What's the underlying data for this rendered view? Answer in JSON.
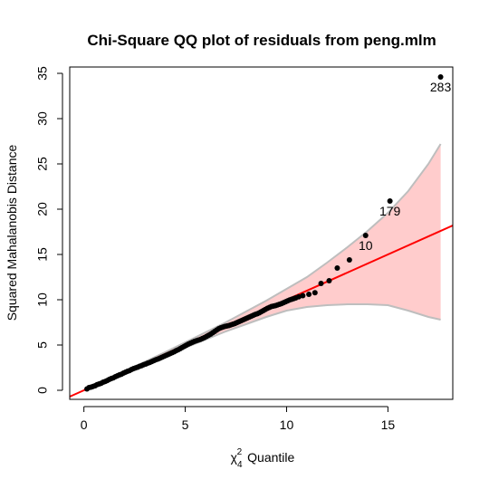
{
  "chart_data": {
    "type": "scatter",
    "title": "Chi-Square QQ plot of residuals from peng.mlm",
    "xlabel": {
      "chi": "χ",
      "subscript": "4",
      "superscript": "2",
      "text": "Quantile"
    },
    "ylabel": "Squared Mahalanobis Distance",
    "xlim": [
      -0.7,
      18.2
    ],
    "ylim": [
      -1.0,
      35.7
    ],
    "xticks": [
      0,
      5,
      10,
      15
    ],
    "yticks": [
      0,
      5,
      10,
      15,
      20,
      25,
      30,
      35
    ],
    "grid": false,
    "reference_line": {
      "slope": 1,
      "intercept": 0,
      "color": "#ff0000"
    },
    "envelope": {
      "fill": "#ffcccc",
      "border": "#bebebe",
      "x": [
        0,
        1,
        2,
        3,
        4,
        5,
        6,
        7,
        8,
        9,
        10,
        11,
        12,
        13,
        14,
        15,
        16,
        17,
        17.6
      ],
      "lower": [
        0,
        0.95,
        1.9,
        2.85,
        3.8,
        4.7,
        5.6,
        6.5,
        7.3,
        8.1,
        8.8,
        9.2,
        9.4,
        9.5,
        9.5,
        9.4,
        8.8,
        8.1,
        7.8
      ],
      "upper": [
        0,
        1.05,
        2.1,
        3.15,
        4.2,
        5.3,
        6.4,
        7.5,
        8.7,
        9.9,
        11.2,
        12.5,
        14.1,
        15.8,
        17.6,
        19.6,
        22.0,
        25.0,
        27.2
      ]
    },
    "points": [
      {
        "x": 0.15,
        "y": 0.15
      },
      {
        "x": 0.25,
        "y": 0.3
      },
      {
        "x": 0.35,
        "y": 0.35
      },
      {
        "x": 0.45,
        "y": 0.42
      },
      {
        "x": 0.55,
        "y": 0.5
      },
      {
        "x": 0.65,
        "y": 0.62
      },
      {
        "x": 0.75,
        "y": 0.7
      },
      {
        "x": 0.85,
        "y": 0.78
      },
      {
        "x": 0.95,
        "y": 0.9
      },
      {
        "x": 1.05,
        "y": 0.98
      },
      {
        "x": 1.15,
        "y": 1.08
      },
      {
        "x": 1.25,
        "y": 1.2
      },
      {
        "x": 1.35,
        "y": 1.3
      },
      {
        "x": 1.45,
        "y": 1.38
      },
      {
        "x": 1.55,
        "y": 1.5
      },
      {
        "x": 1.65,
        "y": 1.6
      },
      {
        "x": 1.75,
        "y": 1.7
      },
      {
        "x": 1.85,
        "y": 1.78
      },
      {
        "x": 1.95,
        "y": 1.9
      },
      {
        "x": 2.05,
        "y": 2.0
      },
      {
        "x": 2.15,
        "y": 2.1
      },
      {
        "x": 2.25,
        "y": 2.18
      },
      {
        "x": 2.35,
        "y": 2.3
      },
      {
        "x": 2.45,
        "y": 2.4
      },
      {
        "x": 2.55,
        "y": 2.48
      },
      {
        "x": 2.65,
        "y": 2.55
      },
      {
        "x": 2.75,
        "y": 2.65
      },
      {
        "x": 2.85,
        "y": 2.72
      },
      {
        "x": 2.95,
        "y": 2.82
      },
      {
        "x": 3.05,
        "y": 2.9
      },
      {
        "x": 3.15,
        "y": 3.0
      },
      {
        "x": 3.25,
        "y": 3.08
      },
      {
        "x": 3.35,
        "y": 3.18
      },
      {
        "x": 3.45,
        "y": 3.28
      },
      {
        "x": 3.55,
        "y": 3.38
      },
      {
        "x": 3.65,
        "y": 3.45
      },
      {
        "x": 3.75,
        "y": 3.55
      },
      {
        "x": 3.85,
        "y": 3.65
      },
      {
        "x": 3.95,
        "y": 3.75
      },
      {
        "x": 4.05,
        "y": 3.85
      },
      {
        "x": 4.15,
        "y": 3.95
      },
      {
        "x": 4.25,
        "y": 4.05
      },
      {
        "x": 4.35,
        "y": 4.15
      },
      {
        "x": 4.45,
        "y": 4.25
      },
      {
        "x": 4.55,
        "y": 4.38
      },
      {
        "x": 4.65,
        "y": 4.48
      },
      {
        "x": 4.75,
        "y": 4.6
      },
      {
        "x": 4.85,
        "y": 4.72
      },
      {
        "x": 4.95,
        "y": 4.85
      },
      {
        "x": 5.05,
        "y": 4.98
      },
      {
        "x": 5.15,
        "y": 5.1
      },
      {
        "x": 5.25,
        "y": 5.2
      },
      {
        "x": 5.35,
        "y": 5.3
      },
      {
        "x": 5.45,
        "y": 5.4
      },
      {
        "x": 5.55,
        "y": 5.48
      },
      {
        "x": 5.65,
        "y": 5.55
      },
      {
        "x": 5.75,
        "y": 5.62
      },
      {
        "x": 5.85,
        "y": 5.72
      },
      {
        "x": 5.95,
        "y": 5.82
      },
      {
        "x": 6.05,
        "y": 5.95
      },
      {
        "x": 6.15,
        "y": 6.08
      },
      {
        "x": 6.25,
        "y": 6.2
      },
      {
        "x": 6.35,
        "y": 6.35
      },
      {
        "x": 6.45,
        "y": 6.5
      },
      {
        "x": 6.55,
        "y": 6.65
      },
      {
        "x": 6.65,
        "y": 6.8
      },
      {
        "x": 6.75,
        "y": 6.9
      },
      {
        "x": 6.85,
        "y": 6.98
      },
      {
        "x": 6.95,
        "y": 7.05
      },
      {
        "x": 7.05,
        "y": 7.1
      },
      {
        "x": 7.15,
        "y": 7.15
      },
      {
        "x": 7.25,
        "y": 7.22
      },
      {
        "x": 7.35,
        "y": 7.3
      },
      {
        "x": 7.45,
        "y": 7.38
      },
      {
        "x": 7.55,
        "y": 7.48
      },
      {
        "x": 7.65,
        "y": 7.58
      },
      {
        "x": 7.75,
        "y": 7.68
      },
      {
        "x": 7.85,
        "y": 7.78
      },
      {
        "x": 7.95,
        "y": 7.88
      },
      {
        "x": 8.05,
        "y": 7.98
      },
      {
        "x": 8.15,
        "y": 8.08
      },
      {
        "x": 8.25,
        "y": 8.18
      },
      {
        "x": 8.35,
        "y": 8.28
      },
      {
        "x": 8.45,
        "y": 8.38
      },
      {
        "x": 8.55,
        "y": 8.45
      },
      {
        "x": 8.65,
        "y": 8.55
      },
      {
        "x": 8.75,
        "y": 8.68
      },
      {
        "x": 8.85,
        "y": 8.8
      },
      {
        "x": 8.95,
        "y": 8.92
      },
      {
        "x": 9.05,
        "y": 9.05
      },
      {
        "x": 9.15,
        "y": 9.15
      },
      {
        "x": 9.25,
        "y": 9.25
      },
      {
        "x": 9.35,
        "y": 9.3
      },
      {
        "x": 9.45,
        "y": 9.35
      },
      {
        "x": 9.55,
        "y": 9.42
      },
      {
        "x": 9.65,
        "y": 9.5
      },
      {
        "x": 9.75,
        "y": 9.58
      },
      {
        "x": 9.85,
        "y": 9.68
      },
      {
        "x": 9.95,
        "y": 9.78
      },
      {
        "x": 10.05,
        "y": 9.88
      },
      {
        "x": 10.15,
        "y": 9.98
      },
      {
        "x": 10.25,
        "y": 10.05
      },
      {
        "x": 10.35,
        "y": 10.12
      },
      {
        "x": 10.45,
        "y": 10.2
      },
      {
        "x": 10.6,
        "y": 10.32
      },
      {
        "x": 10.8,
        "y": 10.45
      },
      {
        "x": 11.1,
        "y": 10.6
      },
      {
        "x": 11.4,
        "y": 10.78
      },
      {
        "x": 11.7,
        "y": 11.8
      },
      {
        "x": 12.1,
        "y": 12.1
      },
      {
        "x": 12.5,
        "y": 13.5
      },
      {
        "x": 13.1,
        "y": 14.4
      },
      {
        "x": 13.9,
        "y": 17.1,
        "label": "10"
      },
      {
        "x": 15.1,
        "y": 20.9,
        "label": "179"
      },
      {
        "x": 17.6,
        "y": 34.6,
        "label": "283"
      }
    ]
  }
}
